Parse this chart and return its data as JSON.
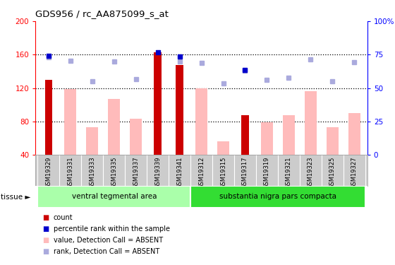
{
  "title": "GDS956 / rc_AA875099_s_at",
  "samples": [
    "GSM19329",
    "GSM19331",
    "GSM19333",
    "GSM19335",
    "GSM19337",
    "GSM19339",
    "GSM19341",
    "GSM19312",
    "GSM19315",
    "GSM19317",
    "GSM19319",
    "GSM19321",
    "GSM19323",
    "GSM19325",
    "GSM19327"
  ],
  "groups": [
    {
      "label": "ventral tegmental area",
      "indices": [
        0,
        1,
        2,
        3,
        4,
        5,
        6
      ],
      "color": "#aaffaa"
    },
    {
      "label": "substantia nigra pars compacta",
      "indices": [
        7,
        8,
        9,
        10,
        11,
        12,
        13,
        14
      ],
      "color": "#33dd33"
    }
  ],
  "count_values": [
    130,
    null,
    null,
    null,
    null,
    163,
    148,
    null,
    null,
    88,
    null,
    null,
    null,
    null,
    null
  ],
  "absent_value_bars": [
    null,
    119,
    73,
    107,
    83,
    null,
    null,
    120,
    56,
    null,
    79,
    88,
    116,
    73,
    90
  ],
  "absent_rank_dots": [
    157,
    153,
    128,
    152,
    131,
    null,
    152,
    150,
    126,
    141,
    130,
    132,
    154,
    128,
    151
  ],
  "dark_blue_dots": [
    159,
    null,
    null,
    null,
    null,
    163,
    158,
    null,
    null,
    142,
    null,
    null,
    null,
    null,
    null
  ],
  "ylim_left": [
    40,
    200
  ],
  "ylim_right": [
    0,
    100
  ],
  "yticks_left": [
    40,
    80,
    120,
    160,
    200
  ],
  "yticks_right": [
    0,
    25,
    50,
    75,
    100
  ],
  "ytick_right_labels": [
    "0",
    "25",
    "50",
    "75",
    "100%"
  ],
  "count_color": "#cc0000",
  "absent_value_color": "#ffbbbb",
  "absent_rank_color": "#aaaadd",
  "dark_blue_color": "#0000cc",
  "tick_label_area_color": "#cccccc",
  "legend_items": [
    {
      "color": "#cc0000",
      "label": "count"
    },
    {
      "color": "#0000cc",
      "label": "percentile rank within the sample"
    },
    {
      "color": "#ffbbbb",
      "label": "value, Detection Call = ABSENT"
    },
    {
      "color": "#aaaadd",
      "label": "rank, Detection Call = ABSENT"
    }
  ]
}
